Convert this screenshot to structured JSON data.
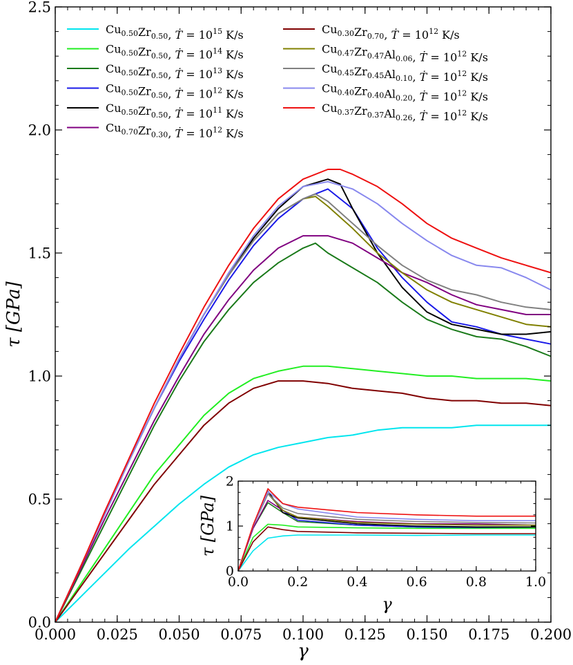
{
  "chart_data": [
    {
      "type": "line",
      "title": "",
      "xlabel": "γ",
      "ylabel": "τ [GPa]",
      "xlim": [
        0.0,
        0.2
      ],
      "ylim": [
        0.0,
        2.5
      ],
      "xticks": [
        "0.000",
        "0.025",
        "0.050",
        "0.075",
        "0.100",
        "0.125",
        "0.150",
        "0.175",
        "0.200"
      ],
      "yticks": [
        "0.0",
        "0.5",
        "1.0",
        "1.5",
        "2.0",
        "2.5"
      ],
      "xtick_values": [
        0,
        0.025,
        0.05,
        0.075,
        0.1,
        0.125,
        0.15,
        0.175,
        0.2
      ],
      "ytick_values": [
        0,
        0.5,
        1.0,
        1.5,
        2.0,
        2.5
      ],
      "grid": false,
      "legend_position": "top",
      "series": [
        {
          "name": "Cu0.50Zr0.50, Ṫ = 10^15 K/s",
          "comp": [
            [
              "Cu",
              "0.50"
            ],
            [
              "Zr",
              "0.50"
            ]
          ],
          "exp": "15",
          "color": "#00e5ee",
          "x": [
            0,
            0.01,
            0.02,
            0.03,
            0.04,
            0.05,
            0.06,
            0.07,
            0.08,
            0.09,
            0.1,
            0.11,
            0.12,
            0.13,
            0.14,
            0.15,
            0.16,
            0.17,
            0.18,
            0.19,
            0.2
          ],
          "y": [
            0,
            0.1,
            0.2,
            0.3,
            0.39,
            0.48,
            0.56,
            0.63,
            0.68,
            0.71,
            0.73,
            0.75,
            0.76,
            0.78,
            0.79,
            0.79,
            0.79,
            0.8,
            0.8,
            0.8,
            0.8
          ]
        },
        {
          "name": "Cu0.50Zr0.50, Ṫ = 10^14 K/s",
          "comp": [
            [
              "Cu",
              "0.50"
            ],
            [
              "Zr",
              "0.50"
            ]
          ],
          "exp": "14",
          "color": "#22ee22",
          "x": [
            0,
            0.01,
            0.02,
            0.03,
            0.04,
            0.05,
            0.06,
            0.07,
            0.08,
            0.09,
            0.1,
            0.11,
            0.12,
            0.13,
            0.14,
            0.15,
            0.16,
            0.17,
            0.18,
            0.19,
            0.2
          ],
          "y": [
            0,
            0.15,
            0.3,
            0.45,
            0.6,
            0.72,
            0.84,
            0.93,
            0.99,
            1.02,
            1.04,
            1.04,
            1.03,
            1.02,
            1.01,
            1.0,
            1.0,
            0.99,
            0.99,
            0.99,
            0.98
          ]
        },
        {
          "name": "Cu0.50Zr0.50, Ṫ = 10^13 K/s",
          "comp": [
            [
              "Cu",
              "0.50"
            ],
            [
              "Zr",
              "0.50"
            ]
          ],
          "exp": "13",
          "color": "#1a7a1a",
          "x": [
            0,
            0.01,
            0.02,
            0.03,
            0.04,
            0.05,
            0.06,
            0.07,
            0.08,
            0.09,
            0.1,
            0.105,
            0.11,
            0.12,
            0.13,
            0.14,
            0.15,
            0.16,
            0.17,
            0.18,
            0.19,
            0.2
          ],
          "y": [
            0,
            0.2,
            0.4,
            0.6,
            0.8,
            0.98,
            1.14,
            1.27,
            1.38,
            1.46,
            1.52,
            1.54,
            1.5,
            1.44,
            1.38,
            1.3,
            1.23,
            1.19,
            1.16,
            1.15,
            1.12,
            1.08
          ]
        },
        {
          "name": "Cu0.50Zr0.50, Ṫ = 10^12 K/s",
          "comp": [
            [
              "Cu",
              "0.50"
            ],
            [
              "Zr",
              "0.50"
            ]
          ],
          "exp": "12",
          "color": "#1a1ae8",
          "x": [
            0,
            0.01,
            0.02,
            0.03,
            0.04,
            0.05,
            0.06,
            0.07,
            0.08,
            0.09,
            0.1,
            0.11,
            0.12,
            0.13,
            0.14,
            0.15,
            0.16,
            0.17,
            0.18,
            0.19,
            0.2
          ],
          "y": [
            0,
            0.22,
            0.44,
            0.66,
            0.87,
            1.06,
            1.23,
            1.39,
            1.53,
            1.64,
            1.72,
            1.76,
            1.68,
            1.52,
            1.4,
            1.3,
            1.22,
            1.2,
            1.17,
            1.15,
            1.13
          ]
        },
        {
          "name": "Cu0.50Zr0.50, Ṫ = 10^11 K/s",
          "comp": [
            [
              "Cu",
              "0.50"
            ],
            [
              "Zr",
              "0.50"
            ]
          ],
          "exp": "11",
          "color": "#000000",
          "x": [
            0,
            0.01,
            0.02,
            0.03,
            0.04,
            0.05,
            0.06,
            0.07,
            0.08,
            0.09,
            0.1,
            0.11,
            0.115,
            0.12,
            0.13,
            0.14,
            0.15,
            0.16,
            0.17,
            0.18,
            0.19,
            0.2
          ],
          "y": [
            0,
            0.22,
            0.44,
            0.66,
            0.87,
            1.07,
            1.25,
            1.41,
            1.56,
            1.68,
            1.77,
            1.8,
            1.78,
            1.68,
            1.5,
            1.36,
            1.26,
            1.21,
            1.19,
            1.17,
            1.17,
            1.18
          ]
        },
        {
          "name": "Cu0.70Zr0.30, Ṫ = 10^12 K/s",
          "comp": [
            [
              "Cu",
              "0.70"
            ],
            [
              "Zr",
              "0.30"
            ]
          ],
          "exp": "12",
          "color": "#800080",
          "x": [
            0,
            0.01,
            0.02,
            0.03,
            0.04,
            0.05,
            0.06,
            0.07,
            0.08,
            0.09,
            0.1,
            0.11,
            0.12,
            0.13,
            0.14,
            0.15,
            0.16,
            0.17,
            0.18,
            0.19,
            0.2
          ],
          "y": [
            0,
            0.21,
            0.42,
            0.62,
            0.82,
            1.0,
            1.17,
            1.31,
            1.43,
            1.52,
            1.57,
            1.57,
            1.54,
            1.48,
            1.42,
            1.38,
            1.33,
            1.29,
            1.27,
            1.25,
            1.25
          ]
        },
        {
          "name": "Cu0.30Zr0.70, Ṫ = 10^12 K/s",
          "comp": [
            [
              "Cu",
              "0.30"
            ],
            [
              "Zr",
              "0.70"
            ]
          ],
          "exp": "12",
          "color": "#800000",
          "x": [
            0,
            0.01,
            0.02,
            0.03,
            0.04,
            0.05,
            0.06,
            0.07,
            0.08,
            0.09,
            0.1,
            0.11,
            0.12,
            0.13,
            0.14,
            0.15,
            0.16,
            0.17,
            0.18,
            0.19,
            0.2
          ],
          "y": [
            0,
            0.14,
            0.28,
            0.42,
            0.56,
            0.68,
            0.8,
            0.89,
            0.95,
            0.98,
            0.98,
            0.97,
            0.95,
            0.94,
            0.93,
            0.91,
            0.9,
            0.9,
            0.89,
            0.89,
            0.88
          ]
        },
        {
          "name": "Cu0.47Zr0.47Al0.06, Ṫ = 10^12 K/s",
          "comp": [
            [
              "Cu",
              "0.47"
            ],
            [
              "Zr",
              "0.47"
            ],
            [
              "Al",
              "0.06"
            ]
          ],
          "exp": "12",
          "color": "#808000",
          "x": [
            0,
            0.01,
            0.02,
            0.03,
            0.04,
            0.05,
            0.06,
            0.07,
            0.08,
            0.09,
            0.1,
            0.105,
            0.11,
            0.12,
            0.13,
            0.14,
            0.15,
            0.16,
            0.17,
            0.18,
            0.19,
            0.2
          ],
          "y": [
            0,
            0.22,
            0.44,
            0.66,
            0.87,
            1.07,
            1.25,
            1.41,
            1.55,
            1.66,
            1.72,
            1.73,
            1.69,
            1.6,
            1.5,
            1.42,
            1.35,
            1.3,
            1.27,
            1.24,
            1.21,
            1.2
          ]
        },
        {
          "name": "Cu0.45Zr0.45Al0.10, Ṫ = 10^12 K/s",
          "comp": [
            [
              "Cu",
              "0.45"
            ],
            [
              "Zr",
              "0.45"
            ],
            [
              "Al",
              "0.10"
            ]
          ],
          "exp": "12",
          "color": "#808080",
          "x": [
            0,
            0.01,
            0.02,
            0.03,
            0.04,
            0.05,
            0.06,
            0.07,
            0.08,
            0.09,
            0.1,
            0.105,
            0.11,
            0.12,
            0.13,
            0.14,
            0.15,
            0.16,
            0.17,
            0.18,
            0.19,
            0.2
          ],
          "y": [
            0,
            0.22,
            0.44,
            0.66,
            0.87,
            1.07,
            1.25,
            1.41,
            1.55,
            1.66,
            1.72,
            1.74,
            1.71,
            1.62,
            1.53,
            1.45,
            1.39,
            1.35,
            1.33,
            1.3,
            1.28,
            1.27
          ]
        },
        {
          "name": "Cu0.40Zr0.40Al0.20, Ṫ = 10^12 K/s",
          "comp": [
            [
              "Cu",
              "0.40"
            ],
            [
              "Zr",
              "0.40"
            ],
            [
              "Al",
              "0.20"
            ]
          ],
          "exp": "12",
          "color": "#8888ee",
          "x": [
            0,
            0.01,
            0.02,
            0.03,
            0.04,
            0.05,
            0.06,
            0.07,
            0.08,
            0.09,
            0.1,
            0.11,
            0.12,
            0.13,
            0.14,
            0.15,
            0.16,
            0.17,
            0.18,
            0.19,
            0.2
          ],
          "y": [
            0,
            0.22,
            0.44,
            0.66,
            0.87,
            1.07,
            1.25,
            1.42,
            1.57,
            1.69,
            1.77,
            1.79,
            1.76,
            1.7,
            1.62,
            1.55,
            1.49,
            1.45,
            1.44,
            1.4,
            1.35
          ]
        },
        {
          "name": "Cu0.37Zr0.37Al0.26, Ṫ = 10^12 K/s",
          "comp": [
            [
              "Cu",
              "0.37"
            ],
            [
              "Zr",
              "0.37"
            ],
            [
              "Al",
              "0.26"
            ]
          ],
          "exp": "12",
          "color": "#ee1111",
          "x": [
            0,
            0.01,
            0.02,
            0.03,
            0.04,
            0.05,
            0.06,
            0.07,
            0.08,
            0.09,
            0.1,
            0.11,
            0.115,
            0.12,
            0.13,
            0.14,
            0.15,
            0.16,
            0.17,
            0.18,
            0.19,
            0.2
          ],
          "y": [
            0,
            0.22,
            0.45,
            0.67,
            0.89,
            1.09,
            1.28,
            1.45,
            1.6,
            1.72,
            1.8,
            1.84,
            1.84,
            1.82,
            1.77,
            1.7,
            1.62,
            1.56,
            1.52,
            1.48,
            1.45,
            1.42
          ]
        }
      ]
    },
    {
      "type": "line",
      "title": "",
      "xlabel": "γ",
      "ylabel": "τ [GPa]",
      "xlim": [
        0.0,
        1.0
      ],
      "ylim": [
        0,
        2
      ],
      "xticks": [
        "0.0",
        "0.2",
        "0.4",
        "0.6",
        "0.8",
        "1.0"
      ],
      "yticks": [
        "0",
        "1",
        "2"
      ],
      "xtick_values": [
        0,
        0.2,
        0.4,
        0.6,
        0.8,
        1.0
      ],
      "ytick_values": [
        0,
        1,
        2
      ],
      "grid": false,
      "series": [
        {
          "color": "#00e5ee",
          "x": [
            0,
            0.05,
            0.1,
            0.15,
            0.2,
            0.4,
            0.6,
            0.8,
            1.0
          ],
          "y": [
            0,
            0.45,
            0.73,
            0.78,
            0.8,
            0.8,
            0.79,
            0.8,
            0.8
          ]
        },
        {
          "color": "#22ee22",
          "x": [
            0,
            0.05,
            0.1,
            0.15,
            0.2,
            0.4,
            0.6,
            0.8,
            1.0
          ],
          "y": [
            0,
            0.75,
            1.04,
            1.02,
            0.98,
            0.96,
            0.95,
            0.95,
            0.95
          ]
        },
        {
          "color": "#1a7a1a",
          "x": [
            0,
            0.05,
            0.1,
            0.15,
            0.2,
            0.4,
            0.6,
            0.8,
            1.0
          ],
          "y": [
            0,
            0.95,
            1.52,
            1.3,
            1.1,
            1.02,
            0.98,
            0.97,
            0.98
          ]
        },
        {
          "color": "#1a1ae8",
          "x": [
            0,
            0.05,
            0.1,
            0.15,
            0.2,
            0.4,
            0.6,
            0.8,
            1.0
          ],
          "y": [
            0,
            1.0,
            1.72,
            1.35,
            1.13,
            1.02,
            0.98,
            0.97,
            0.98
          ]
        },
        {
          "color": "#000000",
          "x": [
            0,
            0.05,
            0.1,
            0.15,
            0.2,
            0.4,
            0.6,
            0.8,
            1.0
          ],
          "y": [
            0,
            1.0,
            1.78,
            1.3,
            1.18,
            1.05,
            1.0,
            0.98,
            0.98
          ]
        },
        {
          "color": "#800080",
          "x": [
            0,
            0.05,
            0.1,
            0.15,
            0.2,
            0.4,
            0.6,
            0.8,
            1.0
          ],
          "y": [
            0,
            0.95,
            1.57,
            1.35,
            1.2,
            1.1,
            1.05,
            1.05,
            1.02
          ]
        },
        {
          "color": "#800000",
          "x": [
            0,
            0.05,
            0.1,
            0.15,
            0.2,
            0.4,
            0.6,
            0.8,
            1.0
          ],
          "y": [
            0,
            0.65,
            0.98,
            0.92,
            0.88,
            0.85,
            0.84,
            0.83,
            0.83
          ]
        },
        {
          "color": "#808000",
          "x": [
            0,
            0.05,
            0.1,
            0.15,
            0.2,
            0.4,
            0.6,
            0.8,
            1.0
          ],
          "y": [
            0,
            1.0,
            1.72,
            1.35,
            1.2,
            1.08,
            1.04,
            1.02,
            1.02
          ]
        },
        {
          "color": "#808080",
          "x": [
            0,
            0.05,
            0.1,
            0.15,
            0.2,
            0.4,
            0.6,
            0.8,
            1.0
          ],
          "y": [
            0,
            1.0,
            1.72,
            1.4,
            1.28,
            1.15,
            1.1,
            1.08,
            1.07
          ]
        },
        {
          "color": "#8888ee",
          "x": [
            0,
            0.05,
            0.1,
            0.15,
            0.2,
            0.4,
            0.6,
            0.8,
            1.0
          ],
          "y": [
            0,
            1.0,
            1.77,
            1.5,
            1.38,
            1.2,
            1.15,
            1.12,
            1.12
          ]
        },
        {
          "color": "#ee1111",
          "x": [
            0,
            0.05,
            0.1,
            0.15,
            0.2,
            0.4,
            0.6,
            0.8,
            1.0
          ],
          "y": [
            0,
            1.02,
            1.83,
            1.5,
            1.42,
            1.3,
            1.25,
            1.22,
            1.22
          ]
        }
      ]
    }
  ]
}
